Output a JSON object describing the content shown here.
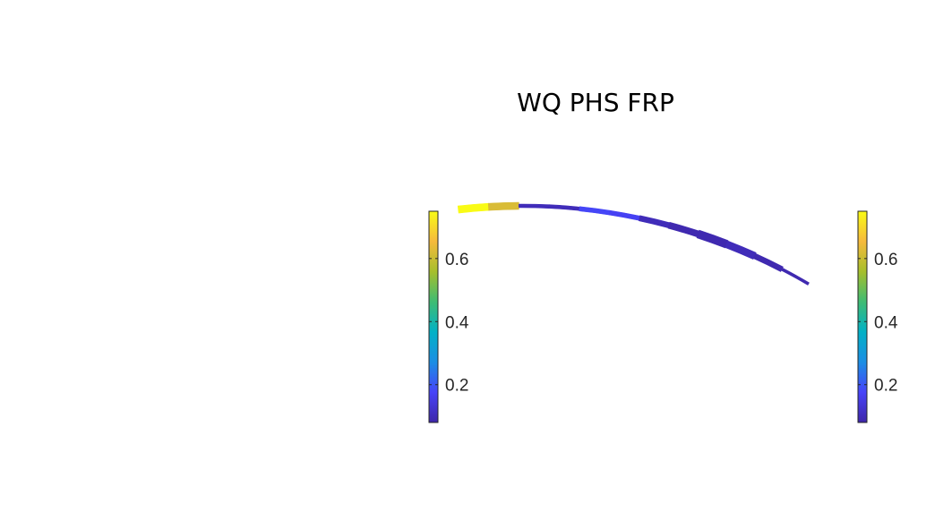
{
  "chart_data": {
    "type": "heatmap",
    "title": "WQ PHS FRP",
    "colormap": "parula",
    "colormap_stops": [
      "#3e26a8",
      "#4743f8",
      "#1b8ee4",
      "#02b1c6",
      "#3fbc73",
      "#a6bf2c",
      "#f6ba3c",
      "#f9fb15"
    ],
    "color_limits": [
      0.08,
      0.75
    ],
    "panels": [
      {
        "name": "left",
        "colorbar": {
          "ticks": [
            0.2,
            0.4,
            0.6
          ],
          "tick_labels": [
            "0.2",
            "0.4",
            "0.6"
          ]
        },
        "data": []
      },
      {
        "name": "right",
        "colorbar": {
          "ticks": [
            0.2,
            0.4,
            0.6
          ],
          "tick_labels": [
            "0.2",
            "0.4",
            "0.6"
          ]
        },
        "data": [
          {
            "segment": 1,
            "value": 0.75
          },
          {
            "segment": 2,
            "value": 0.62
          },
          {
            "segment": 3,
            "value": 0.1
          },
          {
            "segment": 4,
            "value": 0.1
          },
          {
            "segment": 5,
            "value": 0.18
          },
          {
            "segment": 6,
            "value": 0.17
          },
          {
            "segment": 7,
            "value": 0.1
          },
          {
            "segment": 8,
            "value": 0.09
          },
          {
            "segment": 9,
            "value": 0.09
          },
          {
            "segment": 10,
            "value": 0.1
          },
          {
            "segment": 11,
            "value": 0.09
          },
          {
            "segment": 12,
            "value": 0.09
          }
        ]
      }
    ]
  }
}
